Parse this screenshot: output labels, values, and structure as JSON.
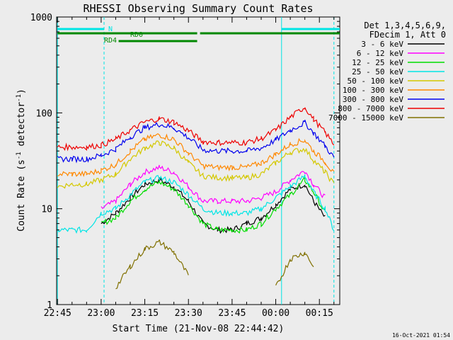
{
  "chart_data": {
    "type": "line",
    "title": "RHESSI Observing Summary Count Rates",
    "xlabel": "Start Time (21-Nov-08 22:44:42)",
    "ylabel": "Count Rate (s",
    "ylabel_sup": "-1",
    "ylabel_mid": " detector",
    "ylabel_end": ")",
    "yscale": "log",
    "ylim": [
      1,
      1000
    ],
    "xlim": [
      "22:44:42",
      "00:22:00"
    ],
    "x_ticks": [
      "22:45",
      "23:00",
      "23:15",
      "23:30",
      "23:45",
      "00:00",
      "00:15"
    ],
    "y_ticks": [
      "1",
      "10",
      "100",
      "1000"
    ],
    "legend_header": [
      "Det 1,3,4,5,6,9,",
      "FDecim 1, Att 0"
    ],
    "series": [
      {
        "name": "3 - 6 keV",
        "color": "#000000",
        "values": [
          null,
          null,
          null,
          7,
          9,
          13,
          18,
          20,
          17,
          12,
          7,
          6,
          6,
          7,
          8,
          11,
          16,
          18,
          12,
          8,
          null
        ]
      },
      {
        "name": "6 - 12 keV",
        "color": "#ff00ff",
        "values": [
          null,
          null,
          null,
          10,
          12,
          18,
          24,
          27,
          24,
          17,
          12,
          12,
          12,
          12,
          13,
          15,
          20,
          25,
          18,
          13,
          null
        ]
      },
      {
        "name": "12 - 25 keV",
        "color": "#00dd00",
        "values": [
          null,
          null,
          null,
          7,
          8,
          12,
          16,
          19,
          16,
          11,
          7,
          6,
          6,
          6,
          7,
          10,
          14,
          20,
          15,
          9,
          null
        ]
      },
      {
        "name": "25 - 50 keV",
        "color": "#00e5e5",
        "values": [
          6,
          6,
          6,
          9,
          10,
          14,
          19,
          21,
          19,
          14,
          10,
          9,
          9,
          9,
          10,
          13,
          17,
          22,
          15,
          10,
          6
        ]
      },
      {
        "name": "50 - 100 keV",
        "color": "#d4c800",
        "values": [
          17,
          18,
          18,
          20,
          23,
          33,
          43,
          49,
          43,
          30,
          22,
          21,
          21,
          21,
          23,
          30,
          39,
          42,
          32,
          24,
          18
        ]
      },
      {
        "name": "100 - 300 keV",
        "color": "#ff8800",
        "values": [
          23,
          23,
          23,
          25,
          29,
          40,
          53,
          59,
          53,
          38,
          28,
          27,
          27,
          27,
          30,
          37,
          47,
          52,
          40,
          31,
          23
        ]
      },
      {
        "name": "300 - 800 keV",
        "color": "#0000ee",
        "values": [
          33,
          33,
          33,
          36,
          42,
          56,
          70,
          76,
          70,
          55,
          41,
          40,
          40,
          40,
          43,
          52,
          66,
          79,
          62,
          45,
          34
        ]
      },
      {
        "name": "800 - 7000 keV",
        "color": "#ee0000",
        "values": [
          44,
          44,
          44,
          46,
          53,
          66,
          80,
          87,
          80,
          65,
          50,
          49,
          49,
          49,
          54,
          66,
          90,
          115,
          86,
          62,
          47
        ]
      },
      {
        "name": "7000 - 15000 keV",
        "color": "#807000",
        "values": [
          null,
          null,
          null,
          null,
          1.5,
          2.5,
          3.8,
          4.5,
          3.5,
          2.0,
          null,
          null,
          null,
          null,
          null,
          1.5,
          3.0,
          3.5,
          2.5,
          null,
          null
        ]
      }
    ],
    "x": [
      "22:45",
      "22:50",
      "22:55",
      "23:00",
      "23:05",
      "23:10",
      "23:15",
      "23:20",
      "23:25",
      "23:30",
      "23:35",
      "23:40",
      "23:45",
      "23:50",
      "23:55",
      "00:00",
      "00:05",
      "00:10",
      "00:13",
      "00:17",
      "00:20"
    ],
    "annotations": {
      "night_label": "N",
      "rd0_label": "RD0",
      "rd4_label": "RD4"
    }
  },
  "footer_timestamp": "16-Oct-2021 01:54"
}
